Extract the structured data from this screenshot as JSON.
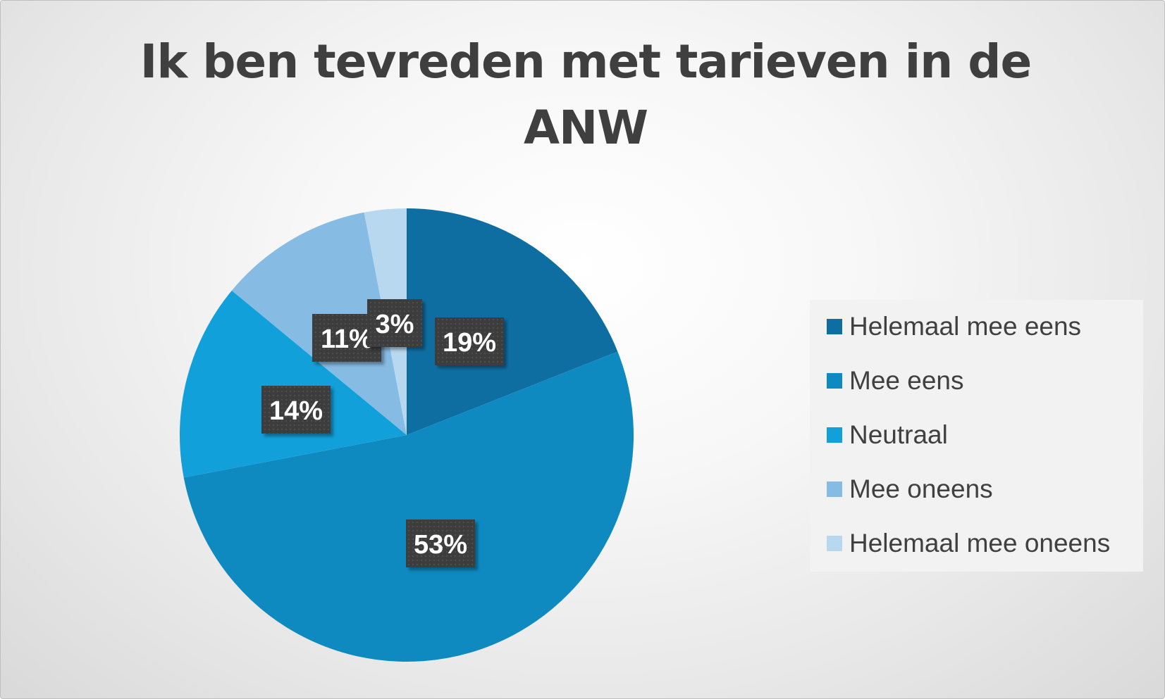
{
  "chart_data": {
    "type": "pie",
    "title": "Ik ben tevreden met tarieven in de ANW",
    "categories": [
      "Helemaal mee eens",
      "Mee eens",
      "Neutraal",
      "Mee oneens",
      "Helemaal mee oneens"
    ],
    "values": [
      19,
      53,
      14,
      11,
      3
    ],
    "data_labels": [
      "19%",
      "53%",
      "14%",
      "11%",
      "3%"
    ],
    "colors": [
      "#0E6EA1",
      "#0E8AC0",
      "#12A0DA",
      "#86BBE3",
      "#B8D8F0"
    ],
    "label_box_color": "#404040",
    "legend_position": "right"
  }
}
